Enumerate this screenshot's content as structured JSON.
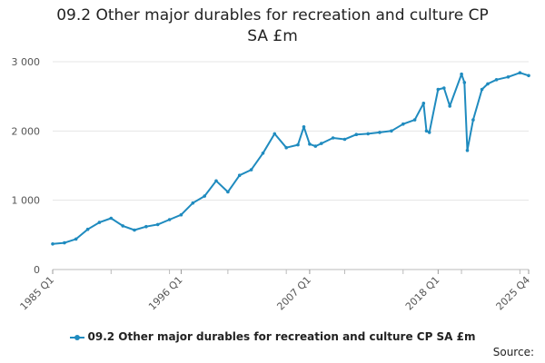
{
  "chart_data": {
    "type": "line",
    "title": "09.2 Other major durables for recreation and culture CP SA £m",
    "xlabel": "",
    "ylabel": "",
    "ylim": [
      0,
      3000
    ],
    "y_ticks": [
      "0",
      "1 000",
      "2 000",
      "3 000"
    ],
    "x_tick_labels": [
      "1985 Q1",
      "1996 Q1",
      "2007 Q1",
      "2018 Q1",
      "2025 Q4"
    ],
    "x_range": [
      "1985 Q1",
      "2025 Q4"
    ],
    "grid": "horizontal",
    "legend_position": "bottom",
    "line_color": "#1f8bbf",
    "series": [
      {
        "name": "09.2 Other major durables for recreation and culture CP SA £m",
        "x": [
          "1985 Q1",
          "1986 Q1",
          "1987 Q1",
          "1988 Q1",
          "1989 Q1",
          "1990 Q1",
          "1991 Q1",
          "1992 Q1",
          "1993 Q1",
          "1994 Q1",
          "1995 Q1",
          "1996 Q1",
          "1997 Q1",
          "1998 Q1",
          "1999 Q1",
          "2000 Q1",
          "2001 Q1",
          "2002 Q1",
          "2003 Q1",
          "2004 Q1",
          "2005 Q1",
          "2006 Q1",
          "2006 Q3",
          "2007 Q1",
          "2007 Q3",
          "2008 Q1",
          "2009 Q1",
          "2010 Q1",
          "2011 Q1",
          "2012 Q1",
          "2013 Q1",
          "2014 Q1",
          "2015 Q1",
          "2016 Q1",
          "2016 Q4",
          "2017 Q1",
          "2017 Q2",
          "2018 Q1",
          "2018 Q3",
          "2019 Q1",
          "2020 Q1",
          "2020 Q2",
          "2020 Q3",
          "2021 Q1",
          "2021 Q4",
          "2022 Q2",
          "2023 Q1",
          "2024 Q1",
          "2025 Q1",
          "2025 Q4"
        ],
        "values": [
          370,
          385,
          440,
          580,
          680,
          740,
          630,
          570,
          620,
          650,
          720,
          790,
          960,
          1060,
          1280,
          1120,
          1360,
          1440,
          1680,
          1960,
          1760,
          1800,
          2060,
          1810,
          1780,
          1820,
          1900,
          1880,
          1950,
          1960,
          1980,
          2000,
          2100,
          2160,
          2400,
          2000,
          1980,
          2600,
          2620,
          2360,
          2820,
          2700,
          1720,
          2160,
          2600,
          2680,
          2740,
          2780,
          2840,
          2800
        ]
      }
    ]
  },
  "source_label": "Source:"
}
